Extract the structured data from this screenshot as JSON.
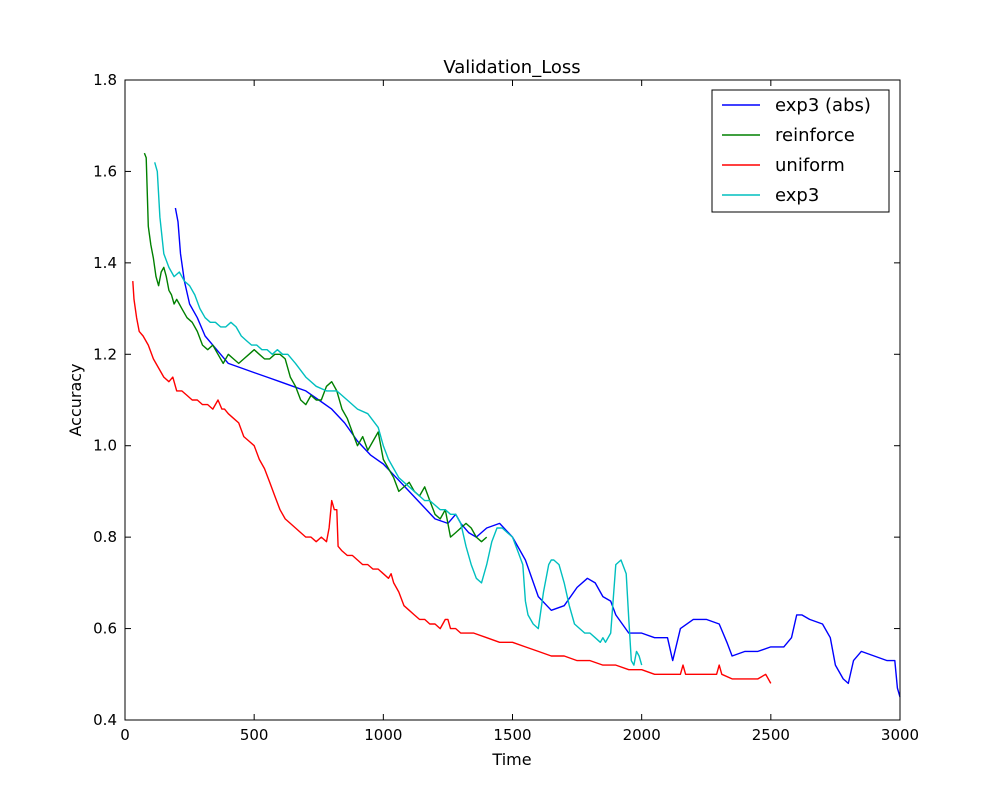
{
  "chart_data": {
    "type": "line",
    "title": "Validation_Loss",
    "xlabel": "Time",
    "ylabel": "Accuracy",
    "xlim": [
      0,
      3000
    ],
    "ylim": [
      0.4,
      1.8
    ],
    "xticks": [
      0,
      500,
      1000,
      1500,
      2000,
      2500,
      3000
    ],
    "xtick_labels": [
      "0",
      "500",
      "1000",
      "1500",
      "2000",
      "2500",
      "3000"
    ],
    "yticks": [
      0.4,
      0.6,
      0.8,
      1.0,
      1.2,
      1.4,
      1.6,
      1.8
    ],
    "ytick_labels": [
      "0.4",
      "0.6",
      "0.8",
      "1.0",
      "1.2",
      "1.4",
      "1.6",
      "1.8"
    ],
    "grid": false,
    "legend": {
      "position": "top-right"
    },
    "series": [
      {
        "name": "exp3 (abs)",
        "color": "#0000ff",
        "x": [
          195,
          205,
          215,
          230,
          250,
          280,
          310,
          340,
          370,
          400,
          450,
          500,
          550,
          600,
          650,
          700,
          750,
          800,
          850,
          900,
          950,
          1000,
          1050,
          1100,
          1150,
          1200,
          1250,
          1280,
          1300,
          1330,
          1360,
          1400,
          1450,
          1500,
          1550,
          1600,
          1650,
          1700,
          1750,
          1790,
          1820,
          1850,
          1880,
          1900,
          1950,
          2000,
          2050,
          2100,
          2120,
          2150,
          2200,
          2250,
          2300,
          2330,
          2350,
          2400,
          2450,
          2500,
          2550,
          2580,
          2600,
          2620,
          2650,
          2700,
          2730,
          2750,
          2780,
          2800,
          2820,
          2850,
          2900,
          2950,
          2980,
          2990,
          3000
        ],
        "y": [
          1.52,
          1.49,
          1.42,
          1.36,
          1.31,
          1.28,
          1.24,
          1.22,
          1.2,
          1.18,
          1.17,
          1.16,
          1.15,
          1.14,
          1.13,
          1.12,
          1.1,
          1.08,
          1.05,
          1.01,
          0.98,
          0.96,
          0.93,
          0.9,
          0.87,
          0.84,
          0.83,
          0.85,
          0.83,
          0.81,
          0.8,
          0.82,
          0.83,
          0.8,
          0.75,
          0.67,
          0.64,
          0.65,
          0.69,
          0.71,
          0.7,
          0.67,
          0.66,
          0.63,
          0.59,
          0.59,
          0.58,
          0.58,
          0.53,
          0.6,
          0.62,
          0.62,
          0.61,
          0.57,
          0.54,
          0.55,
          0.55,
          0.56,
          0.56,
          0.58,
          0.63,
          0.63,
          0.62,
          0.61,
          0.58,
          0.52,
          0.49,
          0.48,
          0.53,
          0.55,
          0.54,
          0.53,
          0.53,
          0.47,
          0.45
        ]
      },
      {
        "name": "reinforce",
        "color": "#008000",
        "x": [
          75,
          82,
          90,
          100,
          110,
          120,
          130,
          140,
          150,
          160,
          170,
          180,
          190,
          200,
          210,
          220,
          240,
          260,
          280,
          300,
          320,
          340,
          360,
          380,
          400,
          420,
          440,
          460,
          480,
          500,
          520,
          540,
          560,
          580,
          600,
          620,
          640,
          660,
          680,
          700,
          720,
          740,
          760,
          780,
          800,
          820,
          840,
          860,
          880,
          900,
          920,
          940,
          960,
          980,
          1000,
          1020,
          1040,
          1060,
          1080,
          1100,
          1120,
          1140,
          1160,
          1180,
          1200,
          1220,
          1240,
          1260,
          1280,
          1300,
          1320,
          1340,
          1360,
          1380,
          1400
        ],
        "y": [
          1.64,
          1.63,
          1.48,
          1.44,
          1.41,
          1.37,
          1.35,
          1.38,
          1.39,
          1.37,
          1.34,
          1.33,
          1.31,
          1.32,
          1.31,
          1.3,
          1.28,
          1.27,
          1.25,
          1.22,
          1.21,
          1.22,
          1.2,
          1.18,
          1.2,
          1.19,
          1.18,
          1.19,
          1.2,
          1.21,
          1.2,
          1.19,
          1.19,
          1.2,
          1.2,
          1.19,
          1.15,
          1.13,
          1.1,
          1.09,
          1.11,
          1.1,
          1.1,
          1.13,
          1.14,
          1.12,
          1.08,
          1.06,
          1.03,
          1.0,
          1.02,
          0.99,
          1.01,
          1.03,
          0.97,
          0.95,
          0.93,
          0.9,
          0.91,
          0.92,
          0.9,
          0.89,
          0.91,
          0.88,
          0.85,
          0.84,
          0.86,
          0.8,
          0.81,
          0.82,
          0.83,
          0.82,
          0.8,
          0.79,
          0.8
        ]
      },
      {
        "name": "uniform",
        "color": "#ff0000",
        "x": [
          30,
          35,
          45,
          55,
          70,
          90,
          110,
          130,
          150,
          170,
          185,
          200,
          220,
          240,
          260,
          280,
          300,
          320,
          340,
          360,
          375,
          385,
          400,
          420,
          440,
          460,
          480,
          500,
          520,
          540,
          560,
          580,
          600,
          620,
          640,
          660,
          680,
          700,
          720,
          740,
          760,
          780,
          790,
          800,
          805,
          810,
          820,
          825,
          840,
          860,
          880,
          900,
          920,
          940,
          960,
          980,
          1000,
          1020,
          1030,
          1040,
          1060,
          1080,
          1100,
          1120,
          1140,
          1160,
          1180,
          1200,
          1220,
          1240,
          1250,
          1260,
          1280,
          1300,
          1350,
          1400,
          1450,
          1500,
          1550,
          1600,
          1650,
          1700,
          1750,
          1800,
          1850,
          1900,
          1950,
          2000,
          2050,
          2100,
          2150,
          2160,
          2170,
          2200,
          2250,
          2290,
          2300,
          2310,
          2350,
          2400,
          2450,
          2480,
          2500
        ],
        "y": [
          1.36,
          1.32,
          1.28,
          1.25,
          1.24,
          1.22,
          1.19,
          1.17,
          1.15,
          1.14,
          1.15,
          1.12,
          1.12,
          1.11,
          1.1,
          1.1,
          1.09,
          1.09,
          1.08,
          1.1,
          1.08,
          1.08,
          1.07,
          1.06,
          1.05,
          1.02,
          1.01,
          1.0,
          0.97,
          0.95,
          0.92,
          0.89,
          0.86,
          0.84,
          0.83,
          0.82,
          0.81,
          0.8,
          0.8,
          0.79,
          0.8,
          0.79,
          0.82,
          0.88,
          0.87,
          0.86,
          0.86,
          0.78,
          0.77,
          0.76,
          0.76,
          0.75,
          0.74,
          0.74,
          0.73,
          0.73,
          0.72,
          0.71,
          0.72,
          0.7,
          0.68,
          0.65,
          0.64,
          0.63,
          0.62,
          0.62,
          0.61,
          0.61,
          0.6,
          0.62,
          0.62,
          0.6,
          0.6,
          0.59,
          0.59,
          0.58,
          0.57,
          0.57,
          0.56,
          0.55,
          0.54,
          0.54,
          0.53,
          0.53,
          0.52,
          0.52,
          0.51,
          0.51,
          0.5,
          0.5,
          0.5,
          0.52,
          0.5,
          0.5,
          0.5,
          0.5,
          0.52,
          0.5,
          0.49,
          0.49,
          0.49,
          0.5,
          0.48
        ]
      },
      {
        "name": "exp3",
        "color": "#00bfbf",
        "x": [
          115,
          125,
          135,
          150,
          170,
          190,
          210,
          230,
          250,
          270,
          290,
          310,
          330,
          350,
          370,
          390,
          410,
          430,
          450,
          470,
          490,
          510,
          530,
          550,
          570,
          590,
          610,
          630,
          660,
          700,
          740,
          780,
          820,
          860,
          900,
          940,
          980,
          1000,
          1020,
          1040,
          1060,
          1080,
          1100,
          1120,
          1140,
          1160,
          1180,
          1200,
          1220,
          1240,
          1260,
          1280,
          1300,
          1320,
          1340,
          1360,
          1380,
          1400,
          1420,
          1440,
          1460,
          1480,
          1500,
          1520,
          1540,
          1550,
          1560,
          1580,
          1600,
          1620,
          1640,
          1650,
          1660,
          1680,
          1700,
          1720,
          1740,
          1760,
          1780,
          1800,
          1820,
          1840,
          1850,
          1860,
          1880,
          1900,
          1920,
          1940,
          1950,
          1960,
          1970,
          1980,
          1990,
          2000
        ],
        "y": [
          1.62,
          1.6,
          1.5,
          1.42,
          1.39,
          1.37,
          1.38,
          1.36,
          1.35,
          1.33,
          1.3,
          1.28,
          1.27,
          1.27,
          1.26,
          1.26,
          1.27,
          1.26,
          1.24,
          1.23,
          1.22,
          1.22,
          1.21,
          1.21,
          1.2,
          1.21,
          1.2,
          1.2,
          1.18,
          1.15,
          1.13,
          1.12,
          1.12,
          1.1,
          1.08,
          1.07,
          1.04,
          1.0,
          0.97,
          0.95,
          0.93,
          0.92,
          0.91,
          0.9,
          0.89,
          0.88,
          0.88,
          0.87,
          0.86,
          0.86,
          0.85,
          0.85,
          0.83,
          0.78,
          0.74,
          0.71,
          0.7,
          0.74,
          0.79,
          0.82,
          0.82,
          0.81,
          0.8,
          0.77,
          0.74,
          0.66,
          0.63,
          0.61,
          0.6,
          0.68,
          0.74,
          0.75,
          0.75,
          0.74,
          0.7,
          0.65,
          0.61,
          0.6,
          0.59,
          0.59,
          0.58,
          0.57,
          0.58,
          0.57,
          0.59,
          0.74,
          0.75,
          0.72,
          0.62,
          0.53,
          0.52,
          0.55,
          0.54,
          0.52
        ]
      }
    ]
  }
}
